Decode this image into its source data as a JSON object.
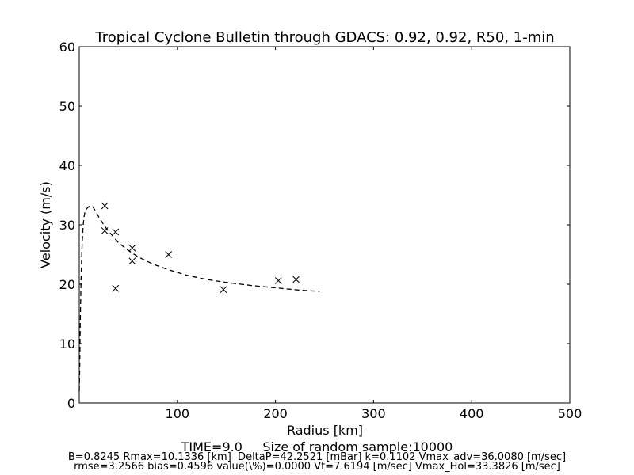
{
  "chart_data": {
    "type": "scatter",
    "title": "Tropical Cyclone Bulletin through GDACS: 0.92, 0.92, R50, 1-min",
    "xlabel": "Radius [km]",
    "ylabel": "Velocity (m/s)",
    "xlim": [
      0,
      500
    ],
    "ylim": [
      0,
      60
    ],
    "xticks": [
      "100",
      "200",
      "300",
      "400",
      "500"
    ],
    "yticks": [
      "0",
      "10",
      "20",
      "30",
      "40",
      "50",
      "60"
    ],
    "grid": false,
    "legend": "none",
    "observations": {
      "marker": "x",
      "points": [
        [
          26,
          29.0
        ],
        [
          26,
          33.2
        ],
        [
          37,
          28.8
        ],
        [
          37,
          19.3
        ],
        [
          54,
          26.1
        ],
        [
          54,
          23.9
        ],
        [
          91,
          25.0
        ],
        [
          147,
          19.1
        ],
        [
          203,
          20.6
        ],
        [
          221,
          20.8
        ]
      ]
    },
    "fit_curve": {
      "style": "dashed",
      "points": [
        [
          0,
          2
        ],
        [
          0.5,
          6
        ],
        [
          1,
          13
        ],
        [
          1.5,
          18
        ],
        [
          2,
          22
        ],
        [
          3,
          27
        ],
        [
          4,
          30
        ],
        [
          5,
          31.5
        ],
        [
          6,
          32.3
        ],
        [
          8,
          32.8
        ],
        [
          10.1,
          33.1
        ],
        [
          12,
          33.2
        ],
        [
          14,
          33.0
        ],
        [
          17,
          32.2
        ],
        [
          20,
          31.3
        ],
        [
          25,
          30.0
        ],
        [
          30,
          28.9
        ],
        [
          40,
          27.0
        ],
        [
          50,
          25.7
        ],
        [
          60,
          24.6
        ],
        [
          75,
          23.4
        ],
        [
          90,
          22.5
        ],
        [
          110,
          21.5
        ],
        [
          130,
          20.8
        ],
        [
          150,
          20.3
        ],
        [
          175,
          19.8
        ],
        [
          200,
          19.4
        ],
        [
          225,
          19.0
        ],
        [
          245,
          18.8
        ]
      ]
    }
  },
  "footer": {
    "line1": "TIME=9.0     Size of random sample:10000",
    "line2": "B=0.8245 Rmax=10.1336 [km]  DeltaP=42.2521 [mBar] k=0.1102 Vmax_adv=36.0080 [m/sec]",
    "line3": "rmse=3.2566 bias=0.4596 value(\\%)=0.0000 Vt=7.6194 [m/sec] Vmax_Hol=33.3826 [m/sec]"
  }
}
